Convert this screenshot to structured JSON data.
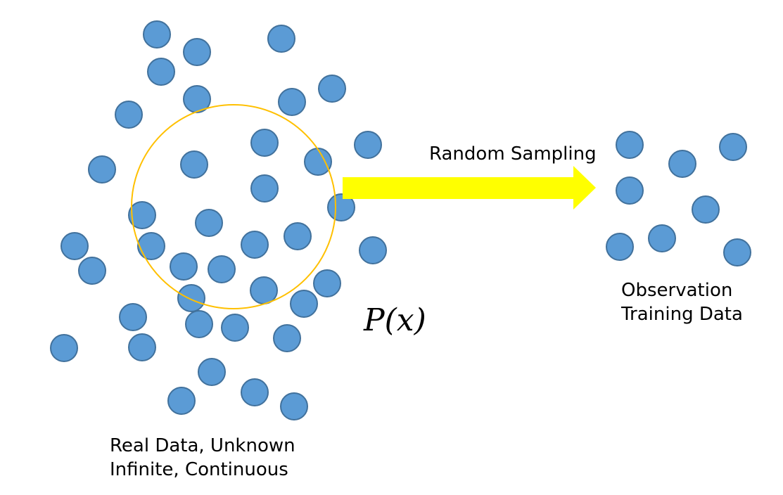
{
  "labels": {
    "random_sampling": "Random Sampling",
    "observation_line1": "Observation",
    "observation_line2": "Training Data",
    "real_line1": "Real Data, Unknown",
    "real_line2": "Infinite, Continuous",
    "distribution": "P(x)"
  },
  "colors": {
    "dot_fill": "#5b9bd5",
    "dot_stroke": "#41719c",
    "sample_circle": "#ffc000",
    "arrow": "#ffff00"
  }
}
